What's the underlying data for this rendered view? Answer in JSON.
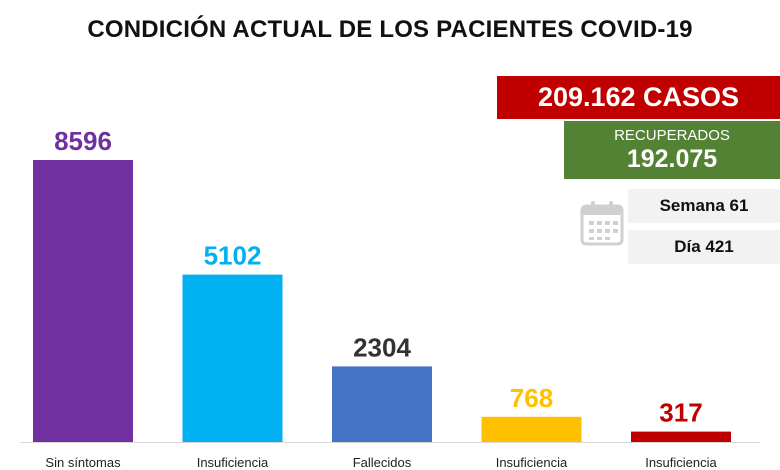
{
  "title": "CONDICIÓN ACTUAL DE LOS PACIENTES COVID-19",
  "summary": {
    "cases": "209.162 CASOS",
    "recovered_label": "RECUPERADOS",
    "recovered_value": "192.075",
    "week": "Semana 61",
    "day": "Día 421",
    "calendar_icon": "calendar-icon"
  },
  "chart_data": {
    "type": "bar",
    "categories": [
      "Sin síntomas",
      "Insuficiencia",
      "Fallecidos",
      "Insuficiencia",
      "Insuficiencia"
    ],
    "values": [
      8596,
      5102,
      2304,
      768,
      317
    ],
    "colors": [
      "#7030a0",
      "#00b0f0",
      "#4472c4",
      "#ffc000",
      "#c00000"
    ],
    "label_colors": [
      "#7030a0",
      "#00b0f0",
      "#333333",
      "#ffc000",
      "#c00000"
    ],
    "title": "CONDICIÓN ACTUAL DE LOS PACIENTES COVID-19",
    "xlabel": "",
    "ylabel": "",
    "ylim": [
      0,
      10000
    ],
    "grid": false,
    "legend": "none"
  }
}
